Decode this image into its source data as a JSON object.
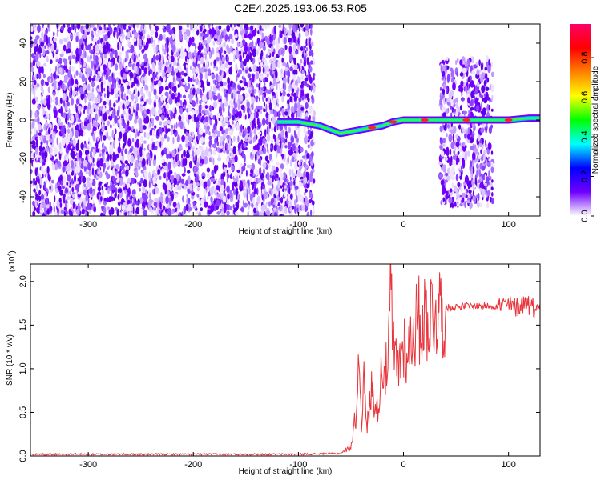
{
  "chart_data": [
    {
      "type": "heatmap",
      "title": "C2E4.2025.193.06.53.R05",
      "xlabel": "Height of straight line (km)",
      "ylabel": "Frequency (Hz)",
      "xlim": [
        -355,
        130
      ],
      "ylim": [
        -50,
        50
      ],
      "xticks": [
        -300,
        -200,
        -100,
        0,
        100
      ],
      "yticks": [
        -40,
        -20,
        0,
        20,
        40
      ],
      "colorbar": {
        "label": "Normalized spectral amplitude",
        "range": [
          0,
          0.97
        ],
        "ticks": [
          "0.0",
          "0.2",
          "0.4",
          "0.6",
          "0.8"
        ],
        "colors": [
          "#ffffff",
          "#7000ff",
          "#0000ff",
          "#00ffff",
          "#00ff00",
          "#ffff00",
          "#ff8000",
          "#ff0000",
          "#ff0066"
        ]
      },
      "regions": [
        {
          "x": [
            -355,
            -85
          ],
          "y": [
            -50,
            50
          ],
          "description": "noise"
        },
        {
          "x": [
            -85,
            35
          ],
          "y": [
            -15,
            5
          ],
          "description": "signal line near 0 Hz"
        },
        {
          "x": [
            35,
            85
          ],
          "y": [
            -45,
            32
          ],
          "description": "noise band"
        },
        {
          "x": [
            85,
            130
          ],
          "y": [
            -5,
            5
          ],
          "description": "signal line near 0 Hz"
        }
      ],
      "signal_line": {
        "x": [
          -120,
          -100,
          -90,
          -80,
          -70,
          -60,
          -50,
          -40,
          -30,
          -20,
          -10,
          0,
          20,
          40,
          60,
          80,
          100,
          120,
          130
        ],
        "y": [
          -1,
          -1,
          -2,
          -3,
          -5,
          -7,
          -6,
          -5,
          -4,
          -3,
          -1,
          0,
          0,
          0,
          0,
          0,
          0,
          1,
          1
        ]
      }
    },
    {
      "type": "line",
      "title": "",
      "xlabel": "Height of straight line (km)",
      "ylabel": "SNR (10 * v/v)",
      "y_multiplier": "(x10",
      "y_multiplier_exp": "4",
      "y_multiplier_close": ")",
      "xlim": [
        -355,
        130
      ],
      "ylim": [
        0,
        2.2
      ],
      "xticks": [
        -300,
        -200,
        -100,
        0,
        100
      ],
      "yticks": [
        "0.0",
        "0.5",
        "1.0",
        "1.5",
        "2.0"
      ],
      "color": "#e8343a",
      "series": [
        {
          "x": [
            -355,
            -300,
            -200,
            -100,
            -60,
            -50,
            -45,
            -42,
            -40,
            -38,
            -35,
            -30,
            -25,
            -20,
            -15,
            -12,
            -10,
            -5,
            0,
            5,
            10,
            15,
            20,
            30,
            40,
            60,
            80,
            90,
            100,
            105,
            110,
            115,
            118,
            120,
            125,
            130
          ],
          "values": [
            0.02,
            0.02,
            0.02,
            0.02,
            0.03,
            0.1,
            0.5,
            1.2,
            0.4,
            0.9,
            0.3,
            0.8,
            0.5,
            1.1,
            0.9,
            2.0,
            1.2,
            1.0,
            1.3,
            1.2,
            1.5,
            1.55,
            1.6,
            1.65,
            1.7,
            1.72,
            1.72,
            1.72,
            1.73,
            1.7,
            1.72,
            1.75,
            1.78,
            1.72,
            1.7,
            1.7
          ]
        }
      ]
    }
  ]
}
